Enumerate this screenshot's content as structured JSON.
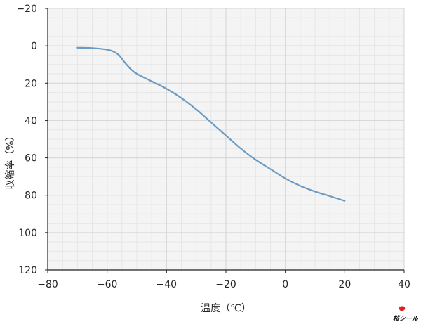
{
  "chart_data": {
    "type": "line",
    "xlabel": "温度（℃）",
    "ylabel": "収縮率（%）",
    "xlim": [
      -80,
      40
    ],
    "ylim": [
      -20,
      120
    ],
    "y_inverted": true,
    "x_ticks": [
      "−80",
      "−60",
      "−40",
      "−20",
      "0",
      "20",
      "40"
    ],
    "y_ticks": [
      "−20",
      "0",
      "20",
      "40",
      "60",
      "80",
      "100",
      "120"
    ],
    "grid": true,
    "series": [
      {
        "color": "#6b9bc3",
        "x": [
          -70,
          -65,
          -60,
          -58,
          -56,
          -54,
          -52,
          -50,
          -45,
          -40,
          -35,
          -30,
          -25,
          -20,
          -15,
          -10,
          -5,
          0,
          5,
          10,
          15,
          20
        ],
        "y": [
          1,
          1.2,
          2,
          3,
          5,
          9,
          12.5,
          15,
          19,
          23,
          28,
          34,
          41,
          48,
          55,
          61,
          66,
          71,
          75,
          78,
          80.5,
          83
        ]
      }
    ]
  },
  "logo": {
    "name": "seal-logo",
    "text": "桜シール"
  }
}
